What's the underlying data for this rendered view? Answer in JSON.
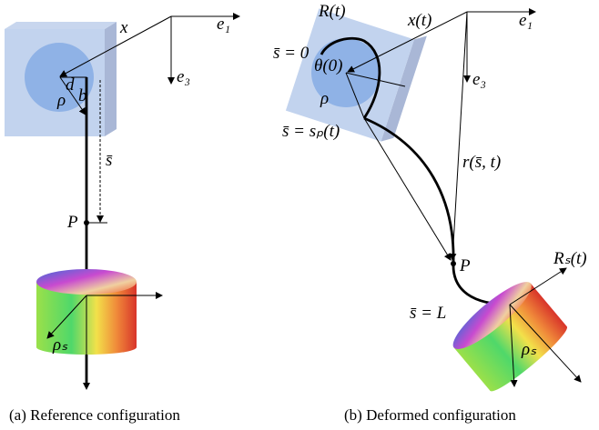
{
  "panels": [
    {
      "caption": "(a) Reference configuration",
      "labels": [
        "x",
        "e₁",
        "e₃",
        "d",
        "ρ",
        "b",
        "s̄",
        "P",
        "ρₛ"
      ]
    },
    {
      "caption": "(b) Deformed configuration",
      "labels": [
        "R(t)",
        "x(t)",
        "e₁",
        "e₃",
        "s̄ = 0",
        "θ(0)",
        "ρ",
        "s̄ = sₚ(t)",
        "r(s̄, t)",
        "P",
        "Rₛ(t)",
        "s̄ = L",
        "ρₛ"
      ]
    }
  ]
}
